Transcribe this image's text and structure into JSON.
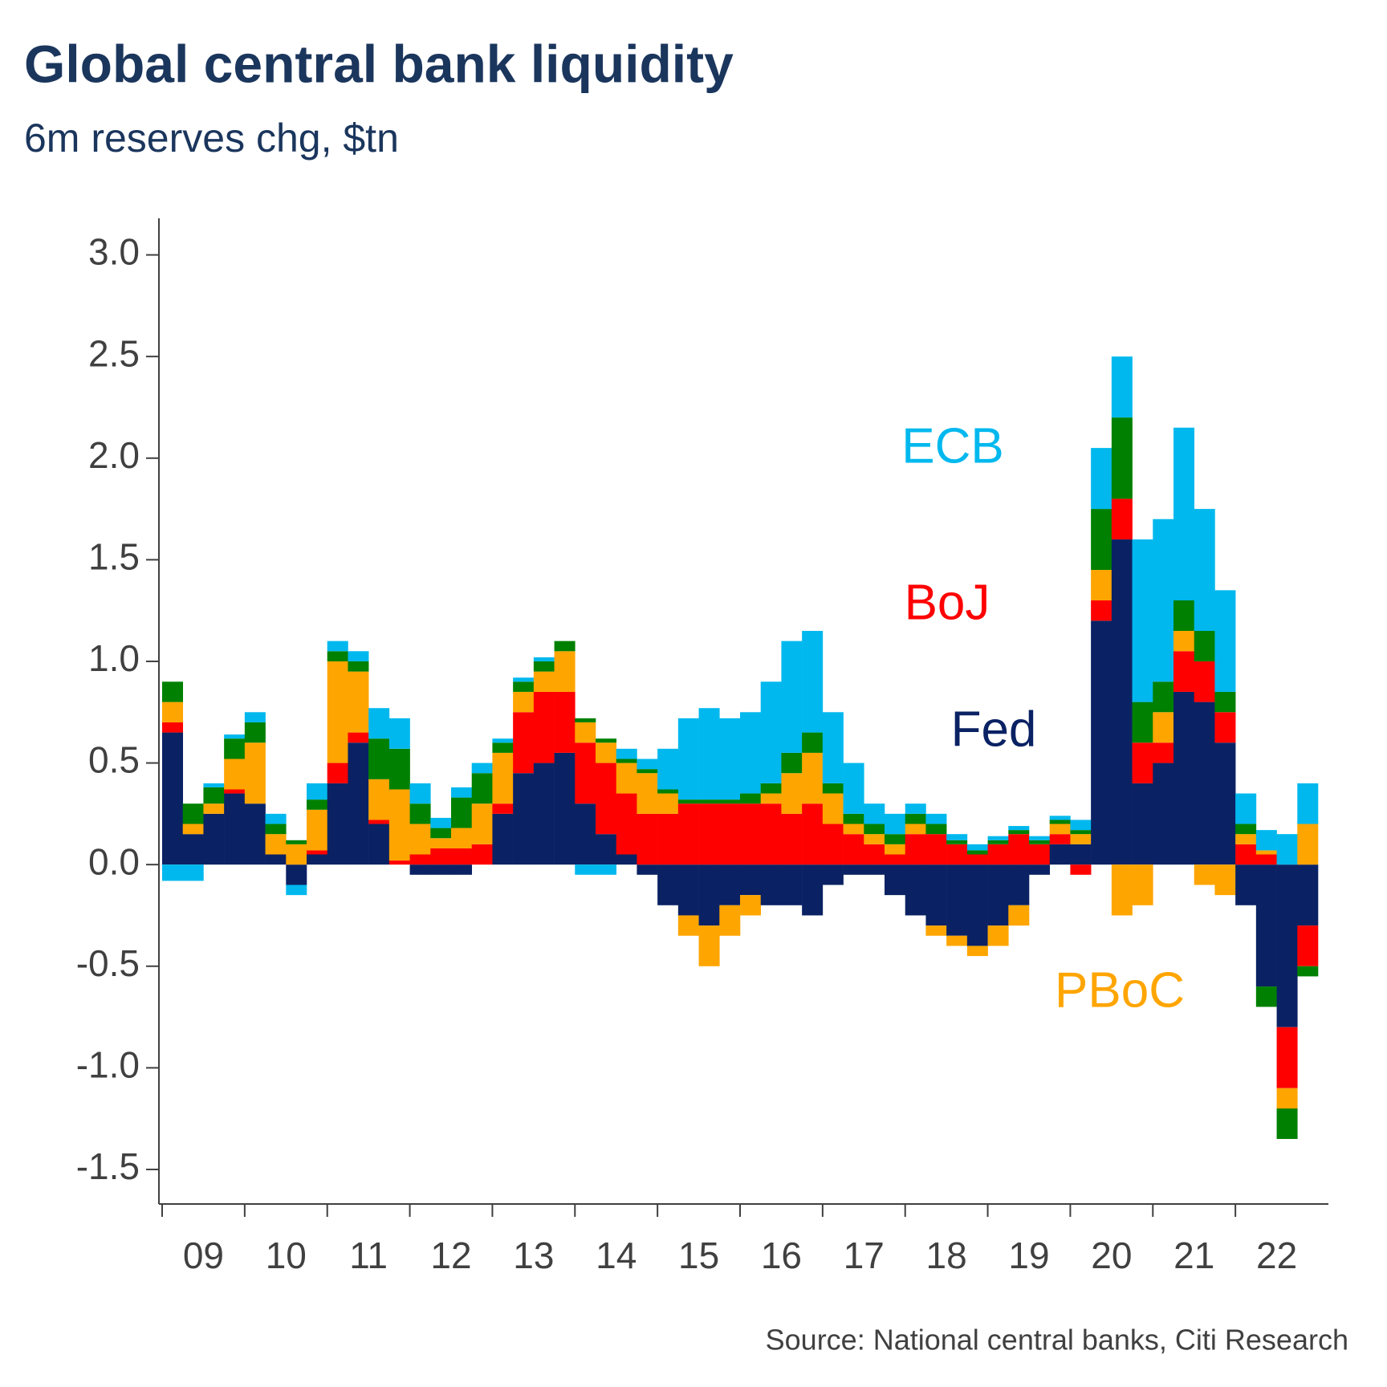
{
  "chart_data": {
    "type": "bar",
    "stacked": true,
    "title": "Global central bank liquidity",
    "subtitle": "6m reserves chg, $tn",
    "source": "Source: National central banks, Citi Research",
    "categories": [
      "09",
      null,
      null,
      null,
      "10",
      null,
      null,
      null,
      "11",
      null,
      null,
      null,
      "12",
      null,
      null,
      null,
      "13",
      null,
      null,
      null,
      "14",
      null,
      null,
      null,
      "15",
      null,
      null,
      null,
      "16",
      null,
      null,
      null,
      "17",
      null,
      null,
      null,
      "18",
      null,
      null,
      null,
      "19",
      null,
      null,
      null,
      "20",
      null,
      null,
      null,
      "21",
      null,
      null,
      null,
      "22",
      null,
      null,
      null
    ],
    "series": [
      {
        "name": "Fed",
        "color": "#0a2263",
        "values": [
          0.65,
          0.15,
          0.25,
          0.35,
          0.3,
          0.05,
          -0.1,
          0.05,
          0.4,
          0.6,
          0.2,
          0.0,
          -0.05,
          -0.05,
          -0.05,
          0,
          0.25,
          0.45,
          0.5,
          0.55,
          0.3,
          0.15,
          0.05,
          -0.05,
          -0.2,
          -0.25,
          -0.3,
          -0.2,
          -0.15,
          -0.2,
          -0.2,
          -0.25,
          -0.1,
          -0.05,
          -0.05,
          -0.15,
          -0.25,
          -0.3,
          -0.35,
          -0.4,
          -0.3,
          -0.2,
          -0.05,
          0.1,
          0.1,
          1.2,
          1.6,
          0.4,
          0.5,
          0.85,
          0.8,
          0.6,
          -0.2,
          -0.6,
          -0.8,
          -0.3
        ]
      },
      {
        "name": "BoJ",
        "color": "#ff0000",
        "values": [
          0.05,
          0,
          0,
          0.02,
          0,
          0,
          0,
          0.02,
          0.1,
          0.05,
          0.02,
          0.02,
          0.05,
          0.08,
          0.08,
          0.1,
          0.05,
          0.3,
          0.35,
          0.3,
          0.3,
          0.35,
          0.3,
          0.25,
          0.25,
          0.3,
          0.3,
          0.3,
          0.3,
          0.3,
          0.25,
          0.3,
          0.2,
          0.15,
          0.1,
          0.05,
          0.15,
          0.15,
          0.1,
          0.05,
          0.1,
          0.15,
          0.1,
          0.05,
          -0.05,
          0.1,
          0.2,
          0.2,
          0.1,
          0.2,
          0.2,
          0.15,
          0.1,
          0.05,
          -0.3,
          -0.2
        ]
      },
      {
        "name": "PBoC",
        "color": "#ffa500",
        "values": [
          0.1,
          0.05,
          0.05,
          0.15,
          0.3,
          0.1,
          0.1,
          0.2,
          0.5,
          0.3,
          0.2,
          0.35,
          0.15,
          0.05,
          0.1,
          0.2,
          0.25,
          0.1,
          0.1,
          0.2,
          0.1,
          0.1,
          0.15,
          0.2,
          0.1,
          -0.1,
          -0.2,
          -0.15,
          -0.1,
          0.05,
          0.2,
          0.25,
          0.15,
          0.05,
          0.05,
          0.05,
          0.05,
          -0.05,
          -0.05,
          -0.05,
          -0.1,
          -0.1,
          0,
          0.05,
          0.05,
          0.15,
          -0.25,
          -0.2,
          0.15,
          0.1,
          -0.1,
          -0.15,
          0.05,
          0.02,
          -0.1,
          0.2
        ]
      },
      {
        "color": "#008000",
        "values": [
          0.1,
          0.1,
          0.08,
          0.1,
          0.1,
          0.05,
          0.02,
          0.05,
          0.05,
          0.05,
          0.2,
          0.2,
          0.1,
          0.05,
          0.15,
          0.15,
          0.05,
          0.05,
          0.05,
          0.05,
          0.02,
          0.02,
          0.02,
          0.02,
          0.02,
          0.02,
          0.02,
          0.02,
          0.05,
          0.05,
          0.1,
          0.1,
          0.05,
          0.05,
          0.05,
          0.05,
          0.05,
          0.05,
          0.02,
          0.02,
          0.02,
          0.02,
          0.02,
          0.02,
          0.02,
          0.3,
          0.4,
          0.2,
          0.15,
          0.15,
          0.15,
          0.1,
          0.05,
          -0.1,
          -0.15,
          -0.05
        ]
      },
      {
        "name": "ECB",
        "color": "#00b8ee",
        "values": [
          -0.08,
          -0.08,
          0.02,
          0.02,
          0.05,
          0.05,
          -0.05,
          0.08,
          0.05,
          0.05,
          0.15,
          0.15,
          0.1,
          0.05,
          0.05,
          0.05,
          0.02,
          0.02,
          0.02,
          0,
          -0.05,
          -0.05,
          0.05,
          0.05,
          0.2,
          0.4,
          0.45,
          0.4,
          0.4,
          0.5,
          0.55,
          0.5,
          0.35,
          0.25,
          0.1,
          0.1,
          0.05,
          0.05,
          0.03,
          0.03,
          0.02,
          0.02,
          0.02,
          0.02,
          0.05,
          0.3,
          0.3,
          0.8,
          0.8,
          0.85,
          0.6,
          0.5,
          0.15,
          0.1,
          0.15,
          0.2
        ]
      }
    ],
    "ylim": [
      -1.67,
      3.18
    ],
    "yticks": [
      {
        "value": -1.5,
        "label": "-1.5"
      },
      {
        "value": -1,
        "label": "-1.0"
      },
      -0.5,
      {
        "value": 0,
        "label": "0.0"
      },
      0.5,
      {
        "value": 1,
        "label": "1.0"
      },
      1.5,
      {
        "value": 2,
        "label": "2.0"
      },
      2.5,
      {
        "value": 3,
        "label": "3.0"
      }
    ]
  }
}
